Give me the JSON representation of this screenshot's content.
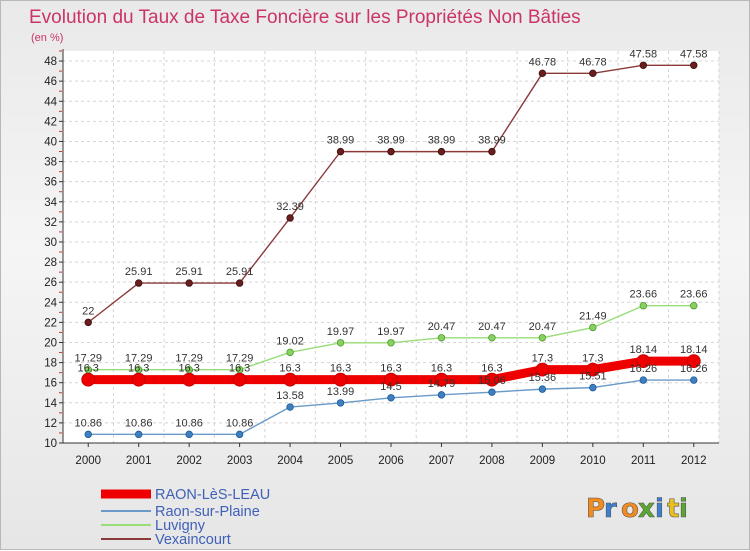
{
  "chart_data": {
    "type": "line",
    "title": "Evolution du Taux de Taxe Foncière sur les Propriétés Non Bâties",
    "subtitle": "(en %)",
    "x": [
      "2000",
      "2001",
      "2002",
      "2003",
      "2004",
      "2005",
      "2006",
      "2007",
      "2008",
      "2009",
      "2010",
      "2011",
      "2012"
    ],
    "y_ticks": [
      10,
      12,
      14,
      16,
      18,
      20,
      22,
      24,
      26,
      28,
      30,
      32,
      34,
      36,
      38,
      40,
      42,
      44,
      46,
      48
    ],
    "ylim": [
      10,
      49
    ],
    "grid": true,
    "legend_position": "bottom-left",
    "series": [
      {
        "name": "RAON-LèS-LEAU",
        "color": "#ee0000",
        "values": [
          16.3,
          16.3,
          16.3,
          16.3,
          16.3,
          16.3,
          16.3,
          16.3,
          16.3,
          17.3,
          17.3,
          18.14,
          18.14
        ],
        "labels": [
          "16.3",
          "16.3",
          "16.3",
          "16.3",
          "16.3",
          "16.3",
          "16.3",
          "16.3",
          "16.3",
          "17.3",
          "17.3",
          "18.14",
          "18.14"
        ]
      },
      {
        "name": "Raon-sur-Plaine",
        "color": "#6a9ac8",
        "values": [
          10.86,
          10.86,
          10.86,
          10.86,
          13.58,
          13.99,
          14.5,
          14.79,
          15.06,
          15.36,
          15.51,
          16.26,
          16.26
        ],
        "labels": [
          "10.86",
          "10.86",
          "10.86",
          "10.86",
          "13.58",
          "13.99",
          "14.5",
          "14.79",
          "15.06",
          "15.36",
          "15.51",
          "16.26",
          "16.26"
        ]
      },
      {
        "name": "Luvigny",
        "color": "#99dd77",
        "values": [
          17.29,
          17.29,
          17.29,
          17.29,
          19.02,
          19.97,
          19.97,
          20.47,
          20.47,
          20.47,
          21.49,
          23.66,
          23.66
        ],
        "labels": [
          "17.29",
          "17.29",
          "17.29",
          "17.29",
          "19.02",
          "19.97",
          "19.97",
          "20.47",
          "20.47",
          "20.47",
          "21.49",
          "23.66",
          "23.66"
        ]
      },
      {
        "name": "Vexaincourt",
        "color": "#7a2a2a",
        "values": [
          22,
          25.91,
          25.91,
          25.91,
          32.39,
          38.99,
          38.99,
          38.99,
          38.99,
          46.78,
          46.78,
          47.58,
          47.58
        ],
        "labels": [
          "22",
          "25.91",
          "25.91",
          "25.91",
          "32.39",
          "38.99",
          "38.99",
          "38.99",
          "38.99",
          "46.78",
          "46.78",
          "47.58",
          "47.58"
        ]
      }
    ]
  },
  "logo": {
    "letters": [
      "P",
      "r",
      "o",
      "x",
      "i",
      "t",
      "i"
    ],
    "colors": [
      "#f28c1e",
      "#3d7fd0",
      "#f28c1e",
      "#5aa832",
      "#3d7fd0",
      "#e8c020",
      "#5aa832"
    ]
  }
}
